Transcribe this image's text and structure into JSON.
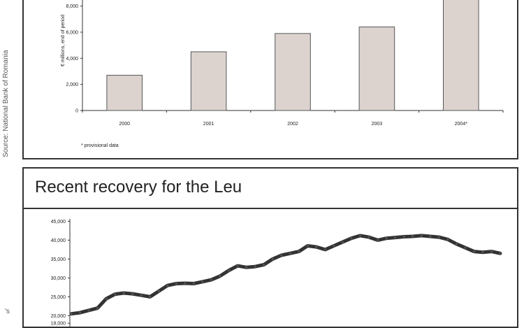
{
  "source_note": "Source: National Bank of Romania",
  "stray_glyph": "'s",
  "chart_data": [
    {
      "type": "bar",
      "title": "",
      "xlabel": "",
      "ylabel": "€ millions, end of period",
      "categories": [
        "2000",
        "2001",
        "2002",
        "2003",
        "2004*"
      ],
      "values": [
        2700,
        4500,
        5900,
        6400,
        8700
      ],
      "ylim": [
        0,
        9000
      ],
      "yticks": [
        0,
        2000,
        4000,
        6000,
        8000
      ],
      "ytick_labels": [
        "0",
        "2,000",
        "4,000",
        "6,000",
        "8,000"
      ],
      "footnote": "* provisional data",
      "grid": false,
      "colors": {
        "bar_fill": "#dcd3cf",
        "bar_stroke": "#555555"
      }
    },
    {
      "type": "line",
      "title": "Recent recovery for the Leu",
      "xlabel": "",
      "ylabel": "",
      "ylim": [
        16000,
        46000
      ],
      "yticks": [
        18000,
        20000,
        25000,
        30000,
        35000,
        40000,
        45000
      ],
      "ytick_labels": [
        "18,000",
        "20,000",
        "25,000",
        "30,000",
        "35,000",
        "40,000",
        "45,000"
      ],
      "grid": false,
      "series": [
        {
          "values": [
            20500,
            20800,
            21400,
            22000,
            24500,
            25700,
            26000,
            25800,
            25400,
            25000,
            26500,
            28000,
            28500,
            28600,
            28500,
            29000,
            29500,
            30500,
            32000,
            33200,
            32800,
            33000,
            33500,
            35000,
            36000,
            36500,
            37000,
            38500,
            38200,
            37500,
            38500,
            39500,
            40500,
            41200,
            40800,
            40000,
            40500,
            40700,
            40900,
            41000,
            41200,
            41000,
            40800,
            40200,
            39000,
            38000,
            37000,
            36800,
            37000,
            36500
          ]
        }
      ],
      "colors": {
        "line": "#333333"
      }
    }
  ]
}
